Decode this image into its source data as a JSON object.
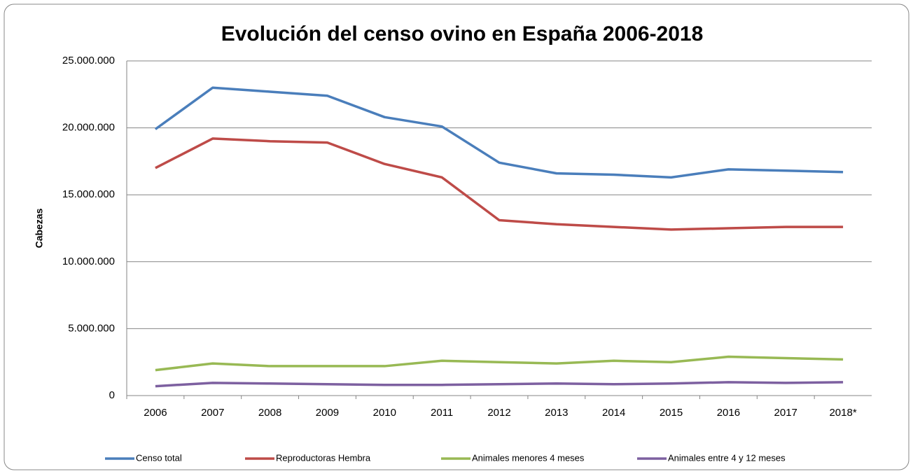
{
  "chart_data": {
    "type": "line",
    "title": "Evolución del censo ovino en España 2006-2018",
    "y_label": "Cabezas",
    "categories": [
      "2006",
      "2007",
      "2008",
      "2009",
      "2010",
      "2011",
      "2012",
      "2013",
      "2014",
      "2015",
      "2016",
      "2017",
      "2018*"
    ],
    "series": [
      {
        "name": "Censo total",
        "color": "#4a7ebb",
        "values": [
          19900000,
          23000000,
          22700000,
          22400000,
          20800000,
          20100000,
          17400000,
          16600000,
          16500000,
          16300000,
          16900000,
          16800000,
          16700000
        ]
      },
      {
        "name": "Reproductoras Hembra",
        "color": "#be4b48",
        "values": [
          17000000,
          19200000,
          19000000,
          18900000,
          17300000,
          16300000,
          13100000,
          12800000,
          12600000,
          12400000,
          12500000,
          12600000,
          12600000
        ]
      },
      {
        "name": "Animales menores 4 meses",
        "color": "#98b954",
        "values": [
          1900000,
          2400000,
          2200000,
          2200000,
          2200000,
          2600000,
          2500000,
          2400000,
          2600000,
          2500000,
          2900000,
          2800000,
          2700000
        ]
      },
      {
        "name": "Animales entre 4 y 12 meses",
        "color": "#7d60a0",
        "values": [
          700000,
          950000,
          900000,
          850000,
          800000,
          800000,
          850000,
          900000,
          850000,
          900000,
          1000000,
          950000,
          1000000
        ]
      }
    ],
    "ylim": [
      0,
      25000000
    ],
    "yticks": [
      0,
      {
        "value": 5000000,
        "label": "5.000.000"
      },
      {
        "value": 10000000,
        "label": "10.000.000"
      },
      {
        "value": 15000000,
        "label": "15.000.000"
      },
      {
        "value": 20000000,
        "label": "20.000.000"
      },
      {
        "value": 25000000,
        "label": "25.000.000"
      }
    ],
    "grid": true,
    "legend": "bottom"
  }
}
